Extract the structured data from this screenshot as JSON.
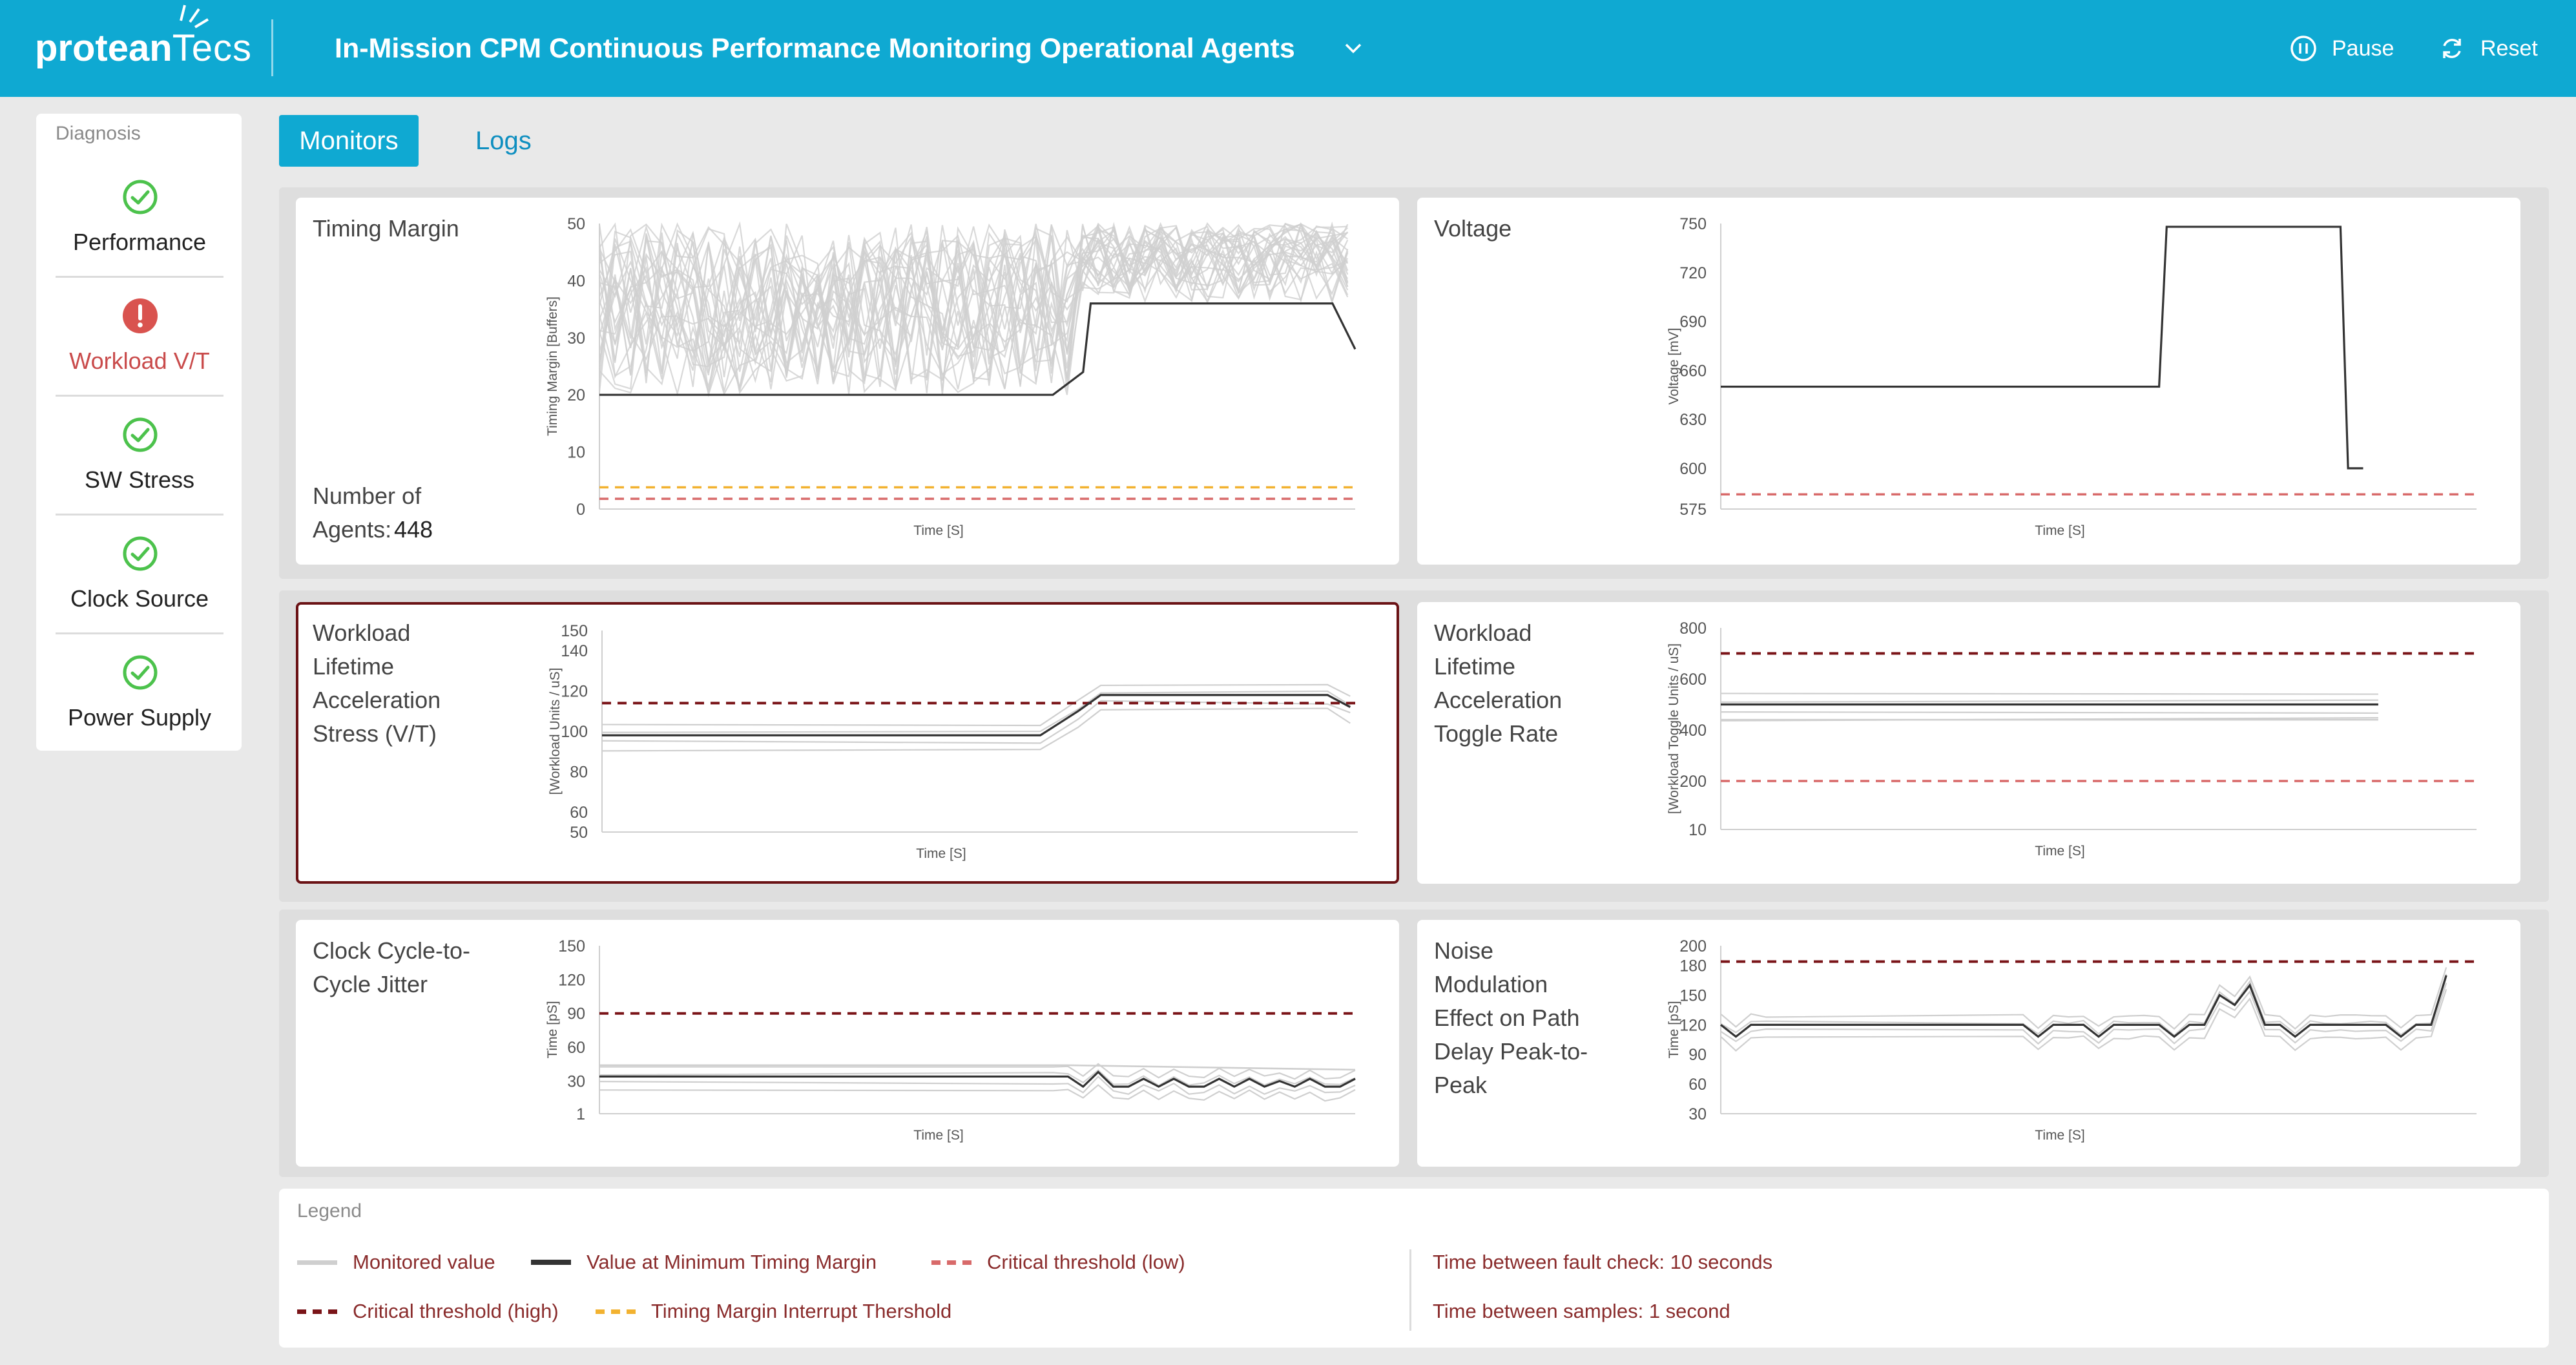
{
  "header": {
    "logo_part1": "protean",
    "logo_part2": "Tecs",
    "title": "In-Mission CPM Continuous Performance Monitoring Operational Agents",
    "pause_label": "Pause",
    "reset_label": "Reset",
    "color": "#0fa9d2"
  },
  "sidebar": {
    "heading": "Diagnosis",
    "items": [
      {
        "label": "Performance",
        "status": "ok",
        "icon": "check-circle-icon"
      },
      {
        "label": "Workload V/T",
        "status": "warning",
        "icon": "exclamation-circle-icon"
      },
      {
        "label": "SW Stress",
        "status": "ok",
        "icon": "check-circle-icon"
      },
      {
        "label": "Clock Source",
        "status": "ok",
        "icon": "check-circle-icon"
      },
      {
        "label": "Power Supply",
        "status": "ok",
        "icon": "check-circle-icon"
      }
    ],
    "ok_color": "#4cc24c",
    "warning_color": "#d9534f"
  },
  "tabs": [
    {
      "label": "Monitors",
      "active": true
    },
    {
      "label": "Logs",
      "active": false
    }
  ],
  "panels": {
    "timing": {
      "title": "Timing Margin",
      "info_label": "Number of Agents:",
      "info_value": "448"
    },
    "voltage": {
      "title": "Voltage"
    },
    "workload_stress": {
      "title": "Workload Lifetime Acceleration Stress (V/T)",
      "selected": true
    },
    "toggle_rate": {
      "title": "Workload Lifetime Acceleration Toggle Rate"
    },
    "jitter": {
      "title": "Clock Cycle-to-Cycle Jitter"
    },
    "noise": {
      "title": "Noise Modulation Effect on Path Delay Peak-to-Peak"
    }
  },
  "chart_data": [
    {
      "id": "timing",
      "type": "line",
      "ylabel": "Timing Margin [Buffers]",
      "xlabel": "Time [S]",
      "yticks": [
        0,
        10,
        20,
        30,
        40,
        50
      ],
      "ylim": [
        0,
        50
      ],
      "xlim": [
        0,
        100
      ],
      "grid": false,
      "series": [
        {
          "role": "minimum",
          "x": [
            0,
            0.6,
            0.64,
            0.65,
            0.97,
            1.0
          ],
          "y": [
            20,
            20,
            24,
            36,
            36,
            28
          ]
        }
      ],
      "monitored_band": {
        "y_low": 20,
        "y_high": 50
      },
      "thresholds": [
        {
          "kind": "interrupt",
          "value": 3.8
        },
        {
          "kind": "critical-low",
          "value": 1.8
        }
      ]
    },
    {
      "id": "voltage",
      "type": "line",
      "ylabel": "Voltage [mV]",
      "xlabel": "Time [S]",
      "yticks": [
        575,
        600,
        630,
        660,
        690,
        720,
        750
      ],
      "ylim": [
        575,
        750
      ],
      "series": [
        {
          "role": "minimum",
          "x": [
            0,
            0.58,
            0.59,
            0.82,
            0.83,
            0.85
          ],
          "y": [
            650,
            650,
            748,
            748,
            600,
            600
          ]
        }
      ],
      "thresholds": [
        {
          "kind": "critical-low",
          "value": 584
        }
      ]
    },
    {
      "id": "workload_stress",
      "type": "line",
      "ylabel": "[Workload Units / uS]",
      "xlabel": "Time [S]",
      "yticks": [
        50,
        60,
        80,
        100,
        120,
        140,
        150
      ],
      "ylim": [
        50,
        150
      ],
      "series": [
        {
          "role": "minimum",
          "x": [
            0,
            0.58,
            0.63,
            0.66,
            0.96,
            0.99
          ],
          "y": [
            98,
            98,
            110,
            118,
            118,
            112
          ]
        }
      ],
      "thresholds": [
        {
          "kind": "critical-high",
          "value": 114
        }
      ]
    },
    {
      "id": "toggle_rate",
      "type": "line",
      "ylabel": "[Workload Toggle Units / uS]",
      "xlabel": "Time [S]",
      "yticks": [
        10,
        200,
        400,
        600,
        800
      ],
      "ylim": [
        10,
        800
      ],
      "series": [
        {
          "role": "minimum",
          "x": [
            0,
            0.87
          ],
          "y": [
            500,
            500
          ]
        },
        {
          "role": "monitored",
          "x": [
            0,
            0.87
          ],
          "y": [
            440,
            440
          ]
        }
      ],
      "thresholds": [
        {
          "kind": "critical-high",
          "value": 700
        },
        {
          "kind": "critical-low",
          "value": 200
        }
      ]
    },
    {
      "id": "jitter",
      "type": "line",
      "ylabel": "Time [pS]",
      "xlabel": "Time [S]",
      "yticks": [
        1,
        30,
        60,
        90,
        120,
        150
      ],
      "ylim": [
        1,
        150
      ],
      "series": [
        {
          "role": "minimum",
          "x": [
            0,
            0.6,
            0.62,
            0.64,
            0.66,
            0.68,
            0.7,
            0.72,
            0.74,
            0.76,
            0.78,
            0.8,
            0.82,
            0.84,
            0.86,
            0.88,
            0.9,
            0.92,
            0.94,
            0.96,
            0.98,
            1.0
          ],
          "y": [
            34,
            34,
            34,
            25,
            38,
            25,
            25,
            32,
            25,
            32,
            25,
            25,
            32,
            25,
            32,
            25,
            30,
            25,
            32,
            25,
            25,
            32
          ]
        },
        {
          "role": "monitored",
          "x": [
            0,
            0.62,
            1.0
          ],
          "y": [
            44,
            44,
            40
          ]
        }
      ],
      "thresholds": [
        {
          "kind": "critical-high",
          "value": 90
        }
      ]
    },
    {
      "id": "noise",
      "type": "line",
      "ylabel": "Time [pS]",
      "xlabel": "Time [S]",
      "yticks": [
        30,
        60,
        90,
        120,
        150,
        180,
        200
      ],
      "ylim": [
        30,
        200
      ],
      "series": [
        {
          "role": "minimum",
          "x": [
            0,
            0.02,
            0.04,
            0.06,
            0.4,
            0.42,
            0.44,
            0.46,
            0.48,
            0.5,
            0.52,
            0.54,
            0.56,
            0.58,
            0.6,
            0.62,
            0.64,
            0.66,
            0.68,
            0.7,
            0.72,
            0.74,
            0.76,
            0.78,
            0.8,
            0.82,
            0.84,
            0.86,
            0.88,
            0.9,
            0.92,
            0.94,
            0.96
          ],
          "y": [
            120,
            108,
            120,
            120,
            120,
            108,
            120,
            120,
            120,
            108,
            120,
            120,
            120,
            120,
            108,
            120,
            120,
            150,
            140,
            160,
            120,
            120,
            108,
            120,
            120,
            120,
            120,
            120,
            120,
            108,
            120,
            120,
            170
          ]
        }
      ],
      "thresholds": [
        {
          "kind": "critical-high",
          "value": 184
        }
      ]
    }
  ],
  "legend": {
    "heading": "Legend",
    "items": [
      {
        "label": "Monitored value",
        "kind": "monitored",
        "color": "#cfcfcf",
        "style": "solid"
      },
      {
        "label": "Value at Minimum Timing Margin",
        "kind": "minimum",
        "color": "#333333",
        "style": "solid"
      },
      {
        "label": "Critical threshold (low)",
        "kind": "critical-low",
        "color": "#d86a6a",
        "style": "dashed"
      },
      {
        "label": "Critical threshold (high)",
        "kind": "critical-high",
        "color": "#7a1418",
        "style": "dashed"
      },
      {
        "label": "Timing Margin Interrupt Thershold",
        "kind": "interrupt",
        "color": "#f2b230",
        "style": "dashed"
      }
    ],
    "fault_check": "Time between fault check: 10 seconds",
    "samples": "Time between samples: 1 second"
  }
}
